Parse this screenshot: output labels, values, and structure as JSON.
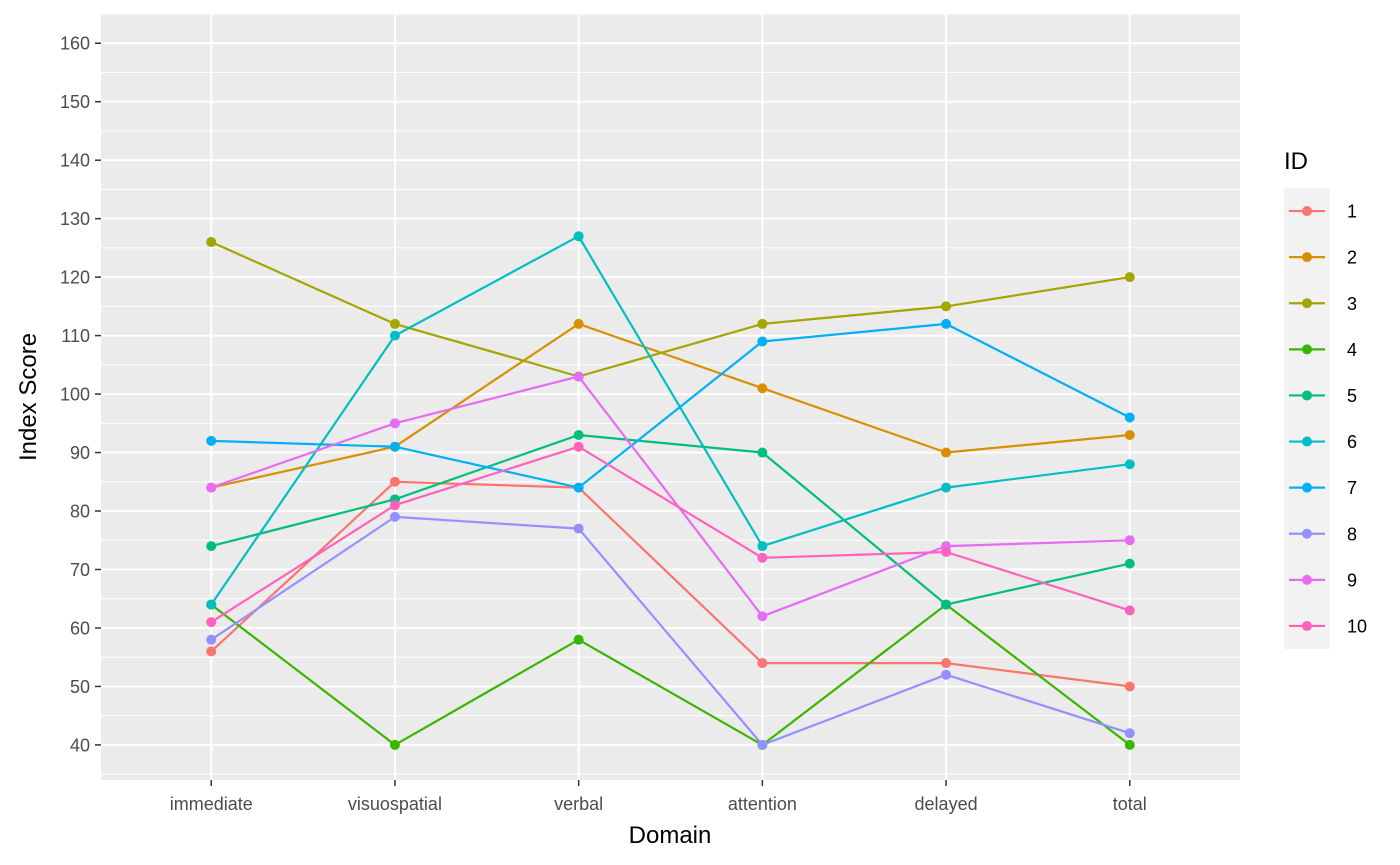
{
  "chart_data": {
    "type": "line",
    "xlabel": "Domain",
    "ylabel": "Index Score",
    "categories": [
      "immediate",
      "visuospatial",
      "verbal",
      "attention",
      "delayed",
      "total"
    ],
    "ylim": [
      34,
      165
    ],
    "yticks": [
      40,
      50,
      60,
      70,
      80,
      90,
      100,
      110,
      120,
      130,
      140,
      150,
      160
    ],
    "grid": true,
    "legend": {
      "title": "ID",
      "position": "right"
    },
    "series": [
      {
        "name": "1",
        "color": "#F8766D",
        "values": [
          56,
          85,
          84,
          54,
          54,
          50
        ]
      },
      {
        "name": "2",
        "color": "#D89000",
        "values": [
          84,
          91,
          112,
          101,
          90,
          93
        ]
      },
      {
        "name": "3",
        "color": "#A3A500",
        "values": [
          126,
          112,
          103,
          112,
          115,
          120
        ]
      },
      {
        "name": "4",
        "color": "#39B600",
        "values": [
          64,
          40,
          58,
          40,
          64,
          40
        ]
      },
      {
        "name": "5",
        "color": "#00BF7D",
        "values": [
          74,
          82,
          93,
          90,
          64,
          71
        ]
      },
      {
        "name": "6",
        "color": "#00BFC4",
        "values": [
          64,
          110,
          127,
          74,
          84,
          88
        ]
      },
      {
        "name": "7",
        "color": "#00B0F6",
        "values": [
          92,
          91,
          84,
          109,
          112,
          96
        ]
      },
      {
        "name": "8",
        "color": "#9590FF",
        "values": [
          58,
          79,
          77,
          40,
          52,
          42
        ]
      },
      {
        "name": "9",
        "color": "#E76BF3",
        "values": [
          84,
          95,
          103,
          62,
          74,
          75
        ]
      },
      {
        "name": "10",
        "color": "#FF62BC",
        "values": [
          61,
          81,
          91,
          72,
          73,
          63
        ]
      }
    ]
  }
}
